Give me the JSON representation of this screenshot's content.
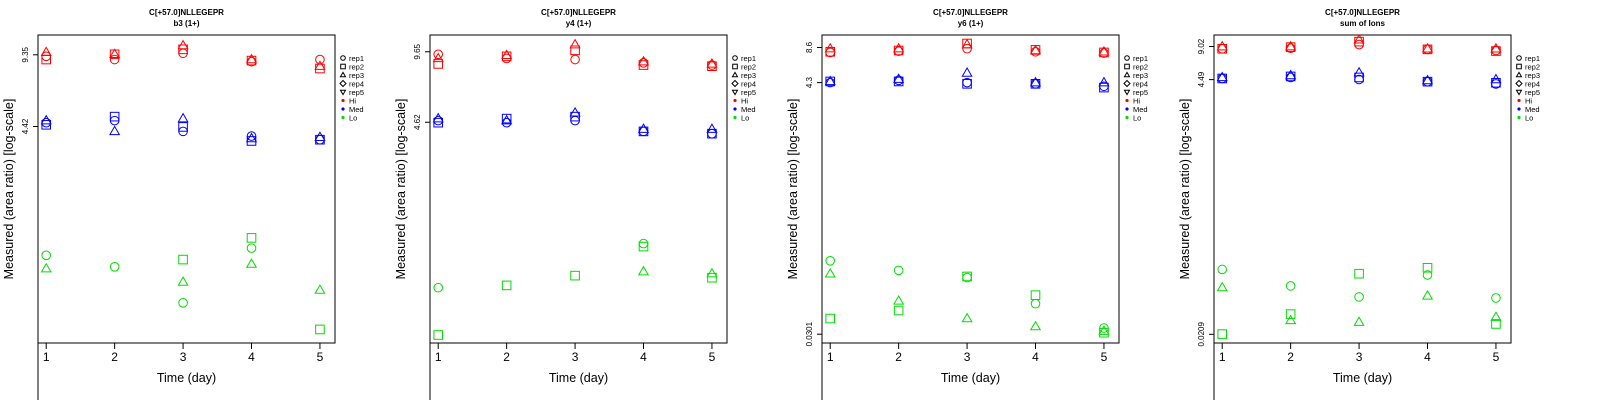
{
  "chart_data": [
    {
      "type": "scatter",
      "title": "C[+57.0]NLLEGEPR",
      "subtitle": "b3 (1+)",
      "xlabel": "Time (day)",
      "ylabel": "Measured (area ratio) [log-scale]",
      "x_ticks": [
        "1",
        "2",
        "3",
        "4",
        "5"
      ],
      "y_ticks": [
        "9.35",
        "4.42"
      ],
      "y_scale": "log",
      "ylim": [
        0.46,
        11.5
      ],
      "grid": false,
      "legend_position": "right",
      "series": [
        {
          "group": "Hi",
          "rep": "rep1",
          "values": [
            [
              1,
              9.2
            ],
            [
              2,
              8.9
            ],
            [
              3,
              9.5
            ],
            [
              4,
              8.7
            ],
            [
              5,
              8.9
            ]
          ]
        },
        {
          "group": "Hi",
          "rep": "rep2",
          "values": [
            [
              1,
              8.9
            ],
            [
              2,
              9.4
            ],
            [
              3,
              9.9
            ],
            [
              4,
              8.8
            ],
            [
              5,
              8.1
            ]
          ]
        },
        {
          "group": "Hi",
          "rep": "rep3",
          "values": [
            [
              1,
              9.6
            ],
            [
              2,
              9.4
            ],
            [
              3,
              10.3
            ],
            [
              4,
              8.9
            ],
            [
              5,
              8.3
            ]
          ]
        },
        {
          "group": "Med",
          "rep": "rep1",
          "values": [
            [
              1,
              4.6
            ],
            [
              2,
              4.7
            ],
            [
              3,
              4.2
            ],
            [
              4,
              4.0
            ],
            [
              5,
              3.85
            ]
          ]
        },
        {
          "group": "Med",
          "rep": "rep2",
          "values": [
            [
              1,
              4.5
            ],
            [
              2,
              4.9
            ],
            [
              3,
              4.4
            ],
            [
              4,
              3.8
            ],
            [
              5,
              3.85
            ]
          ]
        },
        {
          "group": "Med",
          "rep": "rep3",
          "values": [
            [
              1,
              4.7
            ],
            [
              2,
              4.2
            ],
            [
              3,
              4.8
            ],
            [
              4,
              3.9
            ],
            [
              5,
              3.95
            ]
          ]
        },
        {
          "group": "Lo",
          "rep": "rep1",
          "values": [
            [
              1,
              1.15
            ],
            [
              2,
              1.02
            ],
            [
              3,
              0.7
            ],
            [
              4,
              1.24
            ]
          ]
        },
        {
          "group": "Lo",
          "rep": "rep2",
          "values": [
            [
              3,
              1.1
            ],
            [
              4,
              1.38
            ],
            [
              5,
              0.53
            ]
          ]
        },
        {
          "group": "Lo",
          "rep": "rep3",
          "values": [
            [
              1,
              1.0
            ],
            [
              3,
              0.87
            ],
            [
              4,
              1.05
            ],
            [
              5,
              0.8
            ]
          ]
        }
      ]
    },
    {
      "type": "scatter",
      "title": "C[+57.0]NLLEGEPR",
      "subtitle": "y4 (1+)",
      "xlabel": "Time (day)",
      "ylabel": "Measured (area ratio) [log-scale]",
      "x_ticks": [
        "1",
        "2",
        "3",
        "4",
        "5"
      ],
      "y_ticks": [
        "9.65",
        "4.62"
      ],
      "y_scale": "log",
      "ylim": [
        0.46,
        11.5
      ],
      "grid": false,
      "legend_position": "right",
      "series": [
        {
          "group": "Hi",
          "rep": "rep1",
          "values": [
            [
              1,
              9.4
            ],
            [
              2,
              9.0
            ],
            [
              3,
              8.9
            ],
            [
              4,
              8.6
            ],
            [
              5,
              8.4
            ]
          ]
        },
        {
          "group": "Hi",
          "rep": "rep2",
          "values": [
            [
              1,
              8.5
            ],
            [
              2,
              9.2
            ],
            [
              3,
              9.8
            ],
            [
              4,
              8.4
            ],
            [
              5,
              8.3
            ]
          ]
        },
        {
          "group": "Hi",
          "rep": "rep3",
          "values": [
            [
              1,
              9.0
            ],
            [
              2,
              9.3
            ],
            [
              3,
              10.4
            ],
            [
              4,
              8.7
            ],
            [
              5,
              8.5
            ]
          ]
        },
        {
          "group": "Med",
          "rep": "rep1",
          "values": [
            [
              1,
              4.7
            ],
            [
              2,
              4.6
            ],
            [
              3,
              4.7
            ],
            [
              4,
              4.2
            ],
            [
              5,
              4.1
            ]
          ]
        },
        {
          "group": "Med",
          "rep": "rep2",
          "values": [
            [
              1,
              4.6
            ],
            [
              2,
              4.8
            ],
            [
              3,
              4.9
            ],
            [
              4,
              4.2
            ],
            [
              5,
              4.1
            ]
          ]
        },
        {
          "group": "Med",
          "rep": "rep3",
          "values": [
            [
              1,
              4.8
            ],
            [
              2,
              4.7
            ],
            [
              3,
              5.1
            ],
            [
              4,
              4.3
            ],
            [
              5,
              4.3
            ]
          ]
        },
        {
          "group": "Lo",
          "rep": "rep1",
          "values": [
            [
              1,
              0.82
            ],
            [
              4,
              1.3
            ]
          ]
        },
        {
          "group": "Lo",
          "rep": "rep2",
          "values": [
            [
              1,
              0.5
            ],
            [
              2,
              0.84
            ],
            [
              3,
              0.93
            ],
            [
              4,
              1.26
            ],
            [
              5,
              0.91
            ]
          ]
        },
        {
          "group": "Lo",
          "rep": "rep3",
          "values": [
            [
              4,
              0.97
            ],
            [
              5,
              0.95
            ]
          ]
        }
      ]
    },
    {
      "type": "scatter",
      "title": "C[+57.0]NLLEGEPR",
      "subtitle": "y6 (1+)",
      "xlabel": "Time (day)",
      "ylabel": "Measured (area ratio) [log-scale]",
      "x_ticks": [
        "1",
        "2",
        "3",
        "4",
        "5"
      ],
      "y_ticks": [
        "8.6",
        "4.3",
        "0.0301"
      ],
      "y_scale": "log",
      "ylim": [
        0.0253,
        11.0
      ],
      "grid": false,
      "legend_position": "right",
      "series": [
        {
          "group": "Hi",
          "rep": "rep1",
          "values": [
            [
              1,
              7.8
            ],
            [
              2,
              8.0
            ],
            [
              3,
              8.4
            ],
            [
              4,
              7.9
            ],
            [
              5,
              7.7
            ]
          ]
        },
        {
          "group": "Hi",
          "rep": "rep2",
          "values": [
            [
              1,
              7.9
            ],
            [
              2,
              8.1
            ],
            [
              3,
              9.3
            ],
            [
              4,
              8.2
            ],
            [
              5,
              7.8
            ]
          ]
        },
        {
          "group": "Hi",
          "rep": "rep3",
          "values": [
            [
              1,
              8.4
            ],
            [
              2,
              8.4
            ],
            [
              3,
              9.1
            ],
            [
              4,
              8.1
            ],
            [
              5,
              7.9
            ]
          ]
        },
        {
          "group": "Med",
          "rep": "rep1",
          "values": [
            [
              1,
              4.3
            ],
            [
              2,
              4.5
            ],
            [
              3,
              4.3
            ],
            [
              4,
              4.2
            ],
            [
              5,
              4.0
            ]
          ]
        },
        {
          "group": "Med",
          "rep": "rep2",
          "values": [
            [
              1,
              4.4
            ],
            [
              2,
              4.4
            ],
            [
              3,
              4.2
            ],
            [
              4,
              4.2
            ],
            [
              5,
              3.9
            ]
          ]
        },
        {
          "group": "Med",
          "rep": "rep3",
          "values": [
            [
              1,
              4.4
            ],
            [
              2,
              4.6
            ],
            [
              3,
              5.2
            ],
            [
              4,
              4.3
            ],
            [
              5,
              4.3
            ]
          ]
        },
        {
          "group": "Lo",
          "rep": "rep1",
          "values": [
            [
              1,
              0.128
            ],
            [
              2,
              0.106
            ],
            [
              3,
              0.092
            ],
            [
              4,
              0.055
            ],
            [
              5,
              0.034
            ]
          ]
        },
        {
          "group": "Lo",
          "rep": "rep2",
          "values": [
            [
              1,
              0.041
            ],
            [
              2,
              0.048
            ],
            [
              3,
              0.094
            ],
            [
              4,
              0.065
            ],
            [
              5,
              0.031
            ]
          ]
        },
        {
          "group": "Lo",
          "rep": "rep3",
          "values": [
            [
              1,
              0.099
            ],
            [
              2,
              0.058
            ],
            [
              3,
              0.041
            ],
            [
              4,
              0.035
            ],
            [
              5,
              0.032
            ]
          ]
        }
      ]
    },
    {
      "type": "scatter",
      "title": "C[+57.0]NLLEGEPR",
      "subtitle": "sum of Ions",
      "xlabel": "Time (day)",
      "ylabel": "Measured (area ratio) [log-scale]",
      "x_ticks": [
        "1",
        "2",
        "3",
        "4",
        "5"
      ],
      "y_ticks": [
        "9.02",
        "4.49",
        "0.0209"
      ],
      "y_scale": "log",
      "ylim": [
        0.0174,
        11.5
      ],
      "grid": false,
      "legend_position": "right",
      "series": [
        {
          "group": "Hi",
          "rep": "rep1",
          "values": [
            [
              1,
              8.6
            ],
            [
              2,
              8.7
            ],
            [
              3,
              9.4
            ],
            [
              4,
              8.5
            ],
            [
              5,
              8.3
            ]
          ]
        },
        {
          "group": "Hi",
          "rep": "rep2",
          "values": [
            [
              1,
              8.6
            ],
            [
              2,
              8.9
            ],
            [
              3,
              10.0
            ],
            [
              4,
              8.5
            ],
            [
              5,
              8.2
            ]
          ]
        },
        {
          "group": "Hi",
          "rep": "rep3",
          "values": [
            [
              1,
              9.0
            ],
            [
              2,
              9.0
            ],
            [
              3,
              10.4
            ],
            [
              4,
              8.6
            ],
            [
              5,
              8.6
            ]
          ]
        },
        {
          "group": "Med",
          "rep": "rep1",
          "values": [
            [
              1,
              4.6
            ],
            [
              2,
              4.7
            ],
            [
              3,
              4.5
            ],
            [
              4,
              4.3
            ],
            [
              5,
              4.1
            ]
          ]
        },
        {
          "group": "Med",
          "rep": "rep2",
          "values": [
            [
              1,
              4.6
            ],
            [
              2,
              4.8
            ],
            [
              3,
              4.7
            ],
            [
              4,
              4.3
            ],
            [
              5,
              4.2
            ]
          ]
        },
        {
          "group": "Med",
          "rep": "rep3",
          "values": [
            [
              1,
              4.7
            ],
            [
              2,
              4.9
            ],
            [
              3,
              5.2
            ],
            [
              4,
              4.4
            ],
            [
              5,
              4.5
            ]
          ]
        },
        {
          "group": "Lo",
          "rep": "rep1",
          "values": [
            [
              1,
              0.082
            ],
            [
              2,
              0.058
            ],
            [
              3,
              0.046
            ],
            [
              4,
              0.073
            ],
            [
              5,
              0.045
            ]
          ]
        },
        {
          "group": "Lo",
          "rep": "rep2",
          "values": [
            [
              1,
              0.021
            ],
            [
              2,
              0.032
            ],
            [
              3,
              0.075
            ],
            [
              4,
              0.085
            ],
            [
              5,
              0.026
            ]
          ]
        },
        {
          "group": "Lo",
          "rep": "rep3",
          "values": [
            [
              1,
              0.056
            ],
            [
              2,
              0.028
            ],
            [
              3,
              0.027
            ],
            [
              4,
              0.047
            ],
            [
              5,
              0.03
            ]
          ]
        }
      ]
    }
  ],
  "legend": {
    "reps": [
      {
        "label": "rep1",
        "shape": "circle"
      },
      {
        "label": "rep2",
        "shape": "square"
      },
      {
        "label": "rep3",
        "shape": "triangle-up"
      },
      {
        "label": "rep4",
        "shape": "diamond"
      },
      {
        "label": "rep5",
        "shape": "triangle-down"
      }
    ],
    "groups": [
      {
        "label": "Hi",
        "color": "#ff0000"
      },
      {
        "label": "Med",
        "color": "#0000ff"
      },
      {
        "label": "Lo",
        "color": "#00dd00"
      }
    ]
  },
  "colors": {
    "Hi": "#ff0000",
    "Med": "#0000ff",
    "Lo": "#00dd00"
  }
}
